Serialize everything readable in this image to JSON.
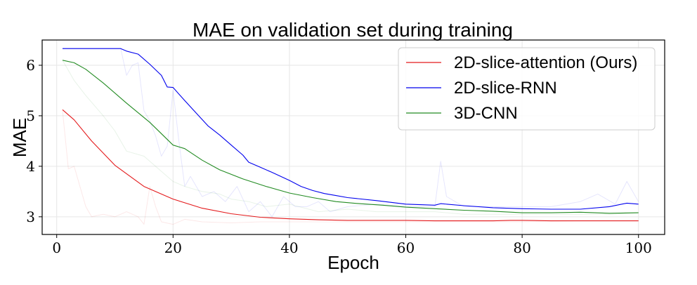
{
  "chart_data": {
    "type": "line",
    "title": "MAE on validation set during training",
    "xlabel": "Epoch",
    "ylabel": "MAE",
    "xlim": [
      -2.5,
      104.5
    ],
    "ylim": [
      2.65,
      6.5
    ],
    "xticks": [
      0,
      20,
      40,
      60,
      80,
      100
    ],
    "yticks": [
      3,
      4,
      5,
      6
    ],
    "grid": true,
    "legend_position": "top-right",
    "series": [
      {
        "name": "2D-slice-attention (Ours)",
        "color": "#e41a1c",
        "smoothed": [
          [
            1,
            5.12
          ],
          [
            3,
            4.92
          ],
          [
            6,
            4.5
          ],
          [
            10,
            4.02
          ],
          [
            15,
            3.6
          ],
          [
            20,
            3.35
          ],
          [
            25,
            3.17
          ],
          [
            30,
            3.06
          ],
          [
            35,
            2.99
          ],
          [
            40,
            2.96
          ],
          [
            45,
            2.94
          ],
          [
            50,
            2.93
          ],
          [
            55,
            2.93
          ],
          [
            60,
            2.93
          ],
          [
            65,
            2.92
          ],
          [
            70,
            2.92
          ],
          [
            75,
            2.92
          ],
          [
            78,
            2.93
          ],
          [
            80,
            2.93
          ],
          [
            85,
            2.92
          ],
          [
            90,
            2.92
          ],
          [
            95,
            2.92
          ],
          [
            100,
            2.92
          ]
        ],
        "raw": [
          [
            1,
            5.1
          ],
          [
            2,
            3.95
          ],
          [
            3,
            4.0
          ],
          [
            4,
            3.6
          ],
          [
            5,
            3.2
          ],
          [
            6,
            3.0
          ],
          [
            8,
            3.05
          ],
          [
            10,
            3.0
          ],
          [
            12,
            3.1
          ],
          [
            14,
            3.0
          ],
          [
            15,
            2.85
          ],
          [
            16,
            3.6
          ],
          [
            17,
            3.2
          ],
          [
            18,
            2.9
          ],
          [
            20,
            2.85
          ],
          [
            22,
            2.95
          ],
          [
            25,
            2.9
          ],
          [
            30,
            2.88
          ],
          [
            35,
            2.9
          ],
          [
            40,
            2.9
          ],
          [
            50,
            2.9
          ],
          [
            60,
            2.9
          ],
          [
            70,
            2.9
          ],
          [
            80,
            2.9
          ],
          [
            90,
            2.92
          ],
          [
            100,
            2.92
          ]
        ]
      },
      {
        "name": "2D-slice-RNN",
        "color": "#0000ee",
        "smoothed": [
          [
            1,
            6.33
          ],
          [
            11,
            6.33
          ],
          [
            12,
            6.28
          ],
          [
            14,
            6.22
          ],
          [
            16,
            6.02
          ],
          [
            18,
            5.8
          ],
          [
            19,
            5.57
          ],
          [
            20,
            5.56
          ],
          [
            22,
            5.3
          ],
          [
            24,
            5.05
          ],
          [
            26,
            4.8
          ],
          [
            28,
            4.62
          ],
          [
            30,
            4.42
          ],
          [
            32,
            4.22
          ],
          [
            33,
            4.08
          ],
          [
            35,
            3.98
          ],
          [
            37,
            3.88
          ],
          [
            40,
            3.72
          ],
          [
            42,
            3.6
          ],
          [
            44,
            3.52
          ],
          [
            46,
            3.46
          ],
          [
            48,
            3.42
          ],
          [
            50,
            3.38
          ],
          [
            55,
            3.32
          ],
          [
            60,
            3.25
          ],
          [
            65,
            3.23
          ],
          [
            66,
            3.26
          ],
          [
            70,
            3.22
          ],
          [
            75,
            3.18
          ],
          [
            80,
            3.16
          ],
          [
            85,
            3.15
          ],
          [
            90,
            3.15
          ],
          [
            95,
            3.2
          ],
          [
            98,
            3.27
          ],
          [
            100,
            3.25
          ]
        ],
        "raw": [
          [
            1,
            6.33
          ],
          [
            11,
            6.33
          ],
          [
            12,
            5.8
          ],
          [
            13,
            6.0
          ],
          [
            14,
            6.05
          ],
          [
            15,
            5.1
          ],
          [
            16,
            4.9
          ],
          [
            17,
            4.6
          ],
          [
            18,
            4.2
          ],
          [
            19,
            4.4
          ],
          [
            20,
            5.5
          ],
          [
            21,
            4.5
          ],
          [
            22,
            3.6
          ],
          [
            23,
            3.8
          ],
          [
            25,
            3.4
          ],
          [
            27,
            3.5
          ],
          [
            29,
            3.3
          ],
          [
            31,
            3.6
          ],
          [
            33,
            3.1
          ],
          [
            35,
            3.3
          ],
          [
            37,
            3.0
          ],
          [
            39,
            3.4
          ],
          [
            41,
            3.2
          ],
          [
            43,
            3.2
          ],
          [
            45,
            3.3
          ],
          [
            47,
            3.1
          ],
          [
            50,
            3.2
          ],
          [
            55,
            3.25
          ],
          [
            60,
            3.2
          ],
          [
            65,
            3.2
          ],
          [
            66,
            4.1
          ],
          [
            67,
            3.4
          ],
          [
            70,
            3.2
          ],
          [
            75,
            3.2
          ],
          [
            80,
            3.2
          ],
          [
            85,
            3.2
          ],
          [
            90,
            3.3
          ],
          [
            93,
            3.45
          ],
          [
            96,
            3.25
          ],
          [
            98,
            3.7
          ],
          [
            100,
            3.3
          ]
        ]
      },
      {
        "name": "3D-CNN",
        "color": "#228b22",
        "smoothed": [
          [
            1,
            6.1
          ],
          [
            3,
            6.05
          ],
          [
            5,
            5.92
          ],
          [
            8,
            5.65
          ],
          [
            12,
            5.25
          ],
          [
            16,
            4.87
          ],
          [
            20,
            4.42
          ],
          [
            22,
            4.35
          ],
          [
            25,
            4.12
          ],
          [
            28,
            3.93
          ],
          [
            32,
            3.75
          ],
          [
            36,
            3.6
          ],
          [
            40,
            3.47
          ],
          [
            44,
            3.38
          ],
          [
            48,
            3.3
          ],
          [
            52,
            3.26
          ],
          [
            56,
            3.23
          ],
          [
            60,
            3.19
          ],
          [
            65,
            3.16
          ],
          [
            70,
            3.13
          ],
          [
            75,
            3.11
          ],
          [
            80,
            3.08
          ],
          [
            85,
            3.08
          ],
          [
            90,
            3.09
          ],
          [
            95,
            3.07
          ],
          [
            100,
            3.08
          ]
        ],
        "raw": [
          [
            1,
            6.1
          ],
          [
            3,
            5.7
          ],
          [
            5,
            5.4
          ],
          [
            8,
            5.0
          ],
          [
            10,
            4.7
          ],
          [
            12,
            4.3
          ],
          [
            15,
            4.2
          ],
          [
            18,
            3.9
          ],
          [
            20,
            3.7
          ],
          [
            22,
            3.6
          ],
          [
            25,
            3.5
          ],
          [
            28,
            3.45
          ],
          [
            30,
            3.35
          ],
          [
            33,
            3.3
          ],
          [
            36,
            3.2
          ],
          [
            40,
            3.25
          ],
          [
            45,
            3.1
          ],
          [
            50,
            3.15
          ],
          [
            55,
            3.1
          ],
          [
            60,
            3.1
          ],
          [
            65,
            3.1
          ],
          [
            70,
            3.05
          ],
          [
            75,
            3.05
          ],
          [
            80,
            3.05
          ],
          [
            85,
            3.05
          ],
          [
            90,
            3.05
          ],
          [
            95,
            3.05
          ],
          [
            100,
            3.08
          ]
        ]
      }
    ]
  }
}
